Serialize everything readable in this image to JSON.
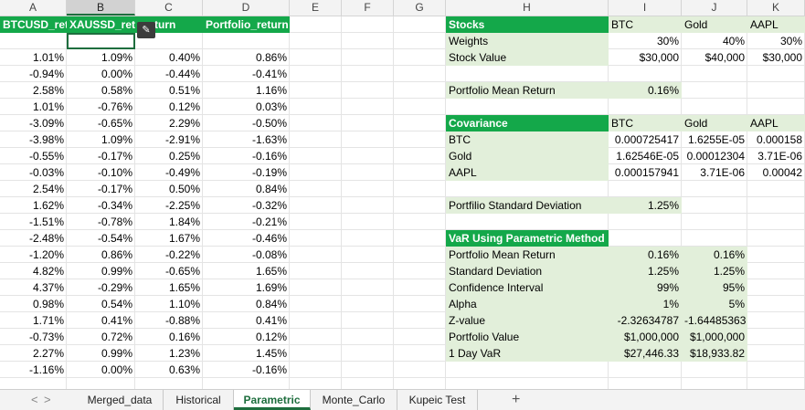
{
  "columns": [
    "A",
    "B",
    "C",
    "D",
    "E",
    "F",
    "G",
    "H",
    "I",
    "J",
    "K"
  ],
  "headers_row": [
    "BTCUSD_ret",
    "XAUSSD_ret",
    "_return",
    "Portfolio_return"
  ],
  "returns": [
    [
      "1.01%",
      "1.09%",
      "0.40%",
      "0.86%"
    ],
    [
      "-0.94%",
      "0.00%",
      "-0.44%",
      "-0.41%"
    ],
    [
      "2.58%",
      "0.58%",
      "0.51%",
      "1.16%"
    ],
    [
      "1.01%",
      "-0.76%",
      "0.12%",
      "0.03%"
    ],
    [
      "-3.09%",
      "-0.65%",
      "2.29%",
      "-0.50%"
    ],
    [
      "-3.98%",
      "1.09%",
      "-2.91%",
      "-1.63%"
    ],
    [
      "-0.55%",
      "-0.17%",
      "0.25%",
      "-0.16%"
    ],
    [
      "-0.03%",
      "-0.10%",
      "-0.49%",
      "-0.19%"
    ],
    [
      "2.54%",
      "-0.17%",
      "0.50%",
      "0.84%"
    ],
    [
      "1.62%",
      "-0.34%",
      "-2.25%",
      "-0.32%"
    ],
    [
      "-1.51%",
      "-0.78%",
      "1.84%",
      "-0.21%"
    ],
    [
      "-2.48%",
      "-0.54%",
      "1.67%",
      "-0.46%"
    ],
    [
      "-1.20%",
      "0.86%",
      "-0.22%",
      "-0.08%"
    ],
    [
      "4.82%",
      "0.99%",
      "-0.65%",
      "1.65%"
    ],
    [
      "4.37%",
      "-0.29%",
      "1.65%",
      "1.69%"
    ],
    [
      "0.98%",
      "0.54%",
      "1.10%",
      "0.84%"
    ],
    [
      "1.71%",
      "0.41%",
      "-0.88%",
      "0.41%"
    ],
    [
      "-0.73%",
      "0.72%",
      "0.16%",
      "0.12%"
    ],
    [
      "2.27%",
      "0.99%",
      "1.23%",
      "1.45%"
    ],
    [
      "-1.16%",
      "0.00%",
      "0.63%",
      "-0.16%"
    ]
  ],
  "stocks": {
    "header": [
      "Stocks",
      "BTC",
      "Gold",
      "AAPL"
    ],
    "weights": [
      "Weights",
      "30%",
      "40%",
      "30%"
    ],
    "stock_value": [
      "Stock Value",
      "$30,000",
      "$40,000",
      "$30,000"
    ],
    "mean_return_label": "Portfolio Mean Return",
    "mean_return_value": "0.16%"
  },
  "covariance": {
    "header": [
      "Covariance",
      "BTC",
      "Gold",
      "AAPL"
    ],
    "rows": [
      [
        "BTC",
        "0.000725417",
        "1.6255E-05",
        "0.000158"
      ],
      [
        "Gold",
        "1.62546E-05",
        "0.00012304",
        "3.71E-06"
      ],
      [
        "AAPL",
        "0.000157941",
        "3.71E-06",
        "0.00042"
      ]
    ],
    "std_label": "Portfilio Standard Deviation",
    "std_value": "1.25%"
  },
  "var": {
    "header": "VaR Using Parametric  Method",
    "rows": [
      [
        "Portfolio Mean Return",
        "0.16%",
        "0.16%"
      ],
      [
        "Standard Deviation",
        "1.25%",
        "1.25%"
      ],
      [
        "Confidence Interval",
        "99%",
        "95%"
      ],
      [
        "Alpha",
        "1%",
        "5%"
      ],
      [
        "Z-value",
        "-2.32634787",
        "-1.64485363"
      ],
      [
        "Portfolio Value",
        "$1,000,000",
        "$1,000,000"
      ],
      [
        "1 Day VaR",
        "$27,446.33",
        "$18,933.82"
      ]
    ]
  },
  "tabs": [
    "Merged_data",
    "Historical",
    "Parametric",
    "Monte_Carlo",
    "Kupeic Test"
  ],
  "nav": {
    "prev": "<",
    "next": ">",
    "add": "+"
  },
  "colors": {
    "header_green": "#14a84a",
    "light_green": "#e2efda",
    "accent": "#1e6e3e"
  }
}
